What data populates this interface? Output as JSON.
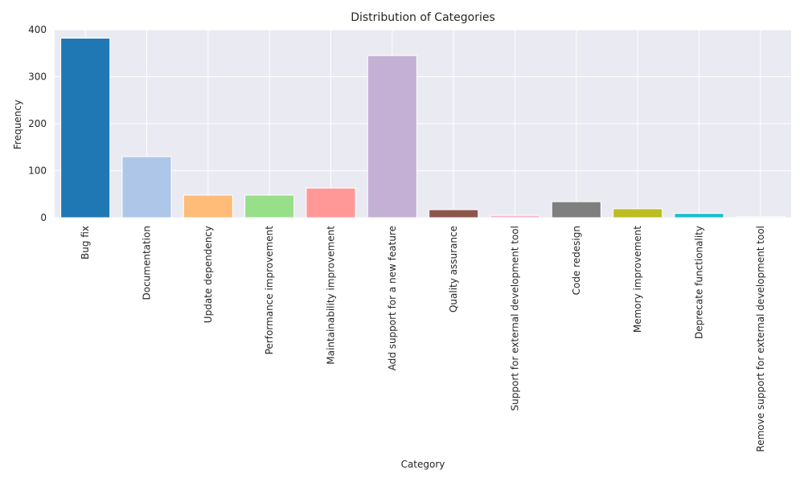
{
  "chart_data": {
    "type": "bar",
    "title": "Distribution of Categories",
    "xlabel": "Category",
    "ylabel": "Frequency",
    "ylim": [
      0,
      400
    ],
    "yticks": [
      0,
      100,
      200,
      300,
      400
    ],
    "grid": true,
    "categories": [
      "Bug fix",
      "Documentation",
      "Update dependency",
      "Performance improvement",
      "Maintainability improvement",
      "Add support for a new feature",
      "Quality assurance",
      "Support for external development tool",
      "Code redesign",
      "Memory improvement",
      "Deprecate functionality",
      "Remove support for external development tool"
    ],
    "values": [
      382,
      130,
      48,
      48,
      63,
      345,
      17,
      5,
      34,
      19,
      9,
      2
    ],
    "colors": [
      "#1f77b4",
      "#aec7e8",
      "#ffbb78",
      "#98df8a",
      "#ff9896",
      "#c5b0d5",
      "#8c564b",
      "#f7b6d2",
      "#7f7f7f",
      "#bcbd22",
      "#17becf",
      "#9edae5"
    ],
    "background_color": "#eaeaf2",
    "grid_color": "#ffffff"
  }
}
